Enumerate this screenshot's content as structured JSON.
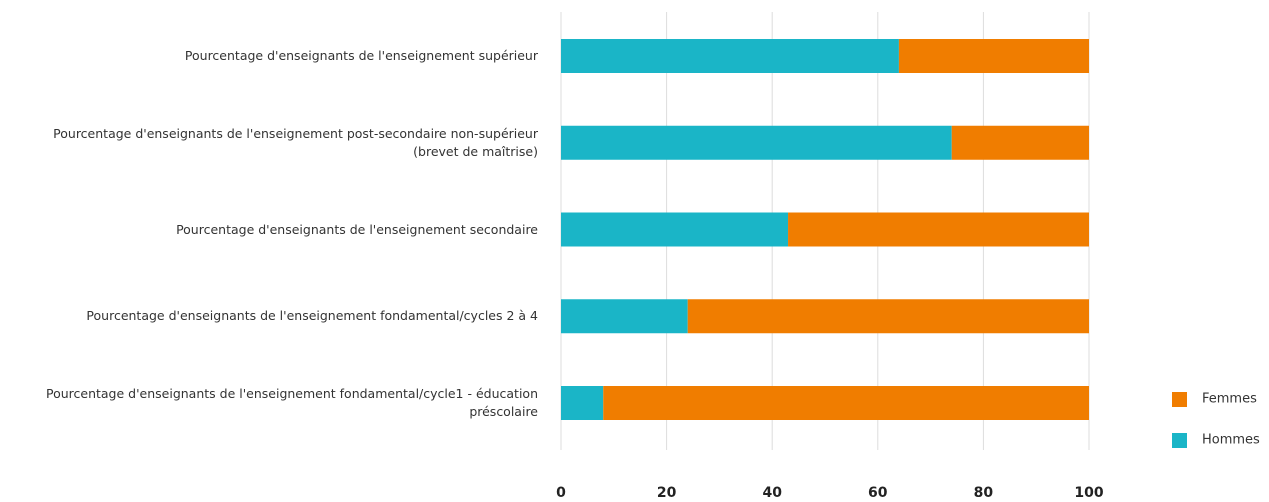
{
  "chart_data": {
    "type": "bar",
    "orientation": "horizontal",
    "stacked": true,
    "categories": [
      "Pourcentage d'enseignants de l'enseignement supérieur",
      "Pourcentage d'enseignants de l'enseignement post-secondaire non-supérieur (brevet de maîtrise)",
      "Pourcentage d'enseignants de l'enseignement secondaire",
      "Pourcentage d'enseignants de l'enseignement fondamental/cycles 2 à 4",
      "Pourcentage d'enseignants de l'enseignement fondamental/cycle1 - éducation préscolaire"
    ],
    "series": [
      {
        "name": "Hommes",
        "color": "#1ab5c7",
        "values": [
          64,
          74,
          43,
          24,
          8
        ]
      },
      {
        "name": "Femmes",
        "color": "#f07d00",
        "values": [
          36,
          26,
          57,
          76,
          92
        ]
      }
    ],
    "xlim": [
      0,
      100
    ],
    "xticks": [
      0,
      20,
      40,
      60,
      80,
      100
    ],
    "grid": true,
    "legend": "lower right"
  }
}
